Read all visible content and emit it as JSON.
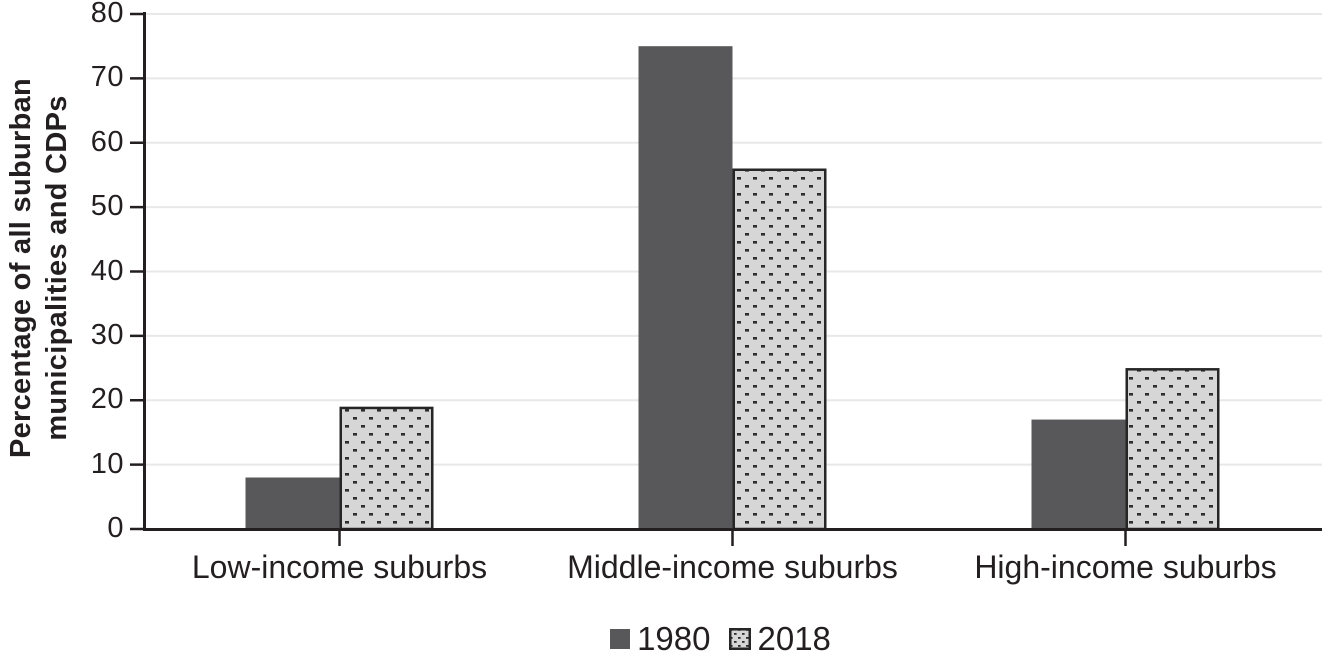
{
  "chart_data": {
    "type": "bar",
    "title": "",
    "ylabel_line1": "Percentage of all suburban",
    "ylabel_line2": "municipalities and CDPs",
    "categories": [
      "Low-income suburbs",
      "Middle-income suburbs",
      "High-income suburbs"
    ],
    "series": [
      {
        "name": "1980",
        "values": [
          8,
          75,
          17
        ],
        "style": "solid",
        "fill": "#58585a"
      },
      {
        "name": "2018",
        "values": [
          19,
          56,
          25
        ],
        "style": "dotted-diagonal-hatch",
        "fill": "#d6d6d6",
        "dot_color": "#2e2e2e",
        "border_color": "#262626"
      }
    ],
    "ylim": [
      0,
      80
    ],
    "ytick_step": 10,
    "ytick_labels": [
      "0",
      "10",
      "20",
      "30",
      "40",
      "50",
      "60",
      "70",
      "80"
    ],
    "grid": "horizontal",
    "legend_position": "bottom-center",
    "colors": {
      "axis": "#231f20",
      "gridline": "#e8e8e8",
      "text": "#231f20",
      "background": "#ffffff"
    }
  }
}
